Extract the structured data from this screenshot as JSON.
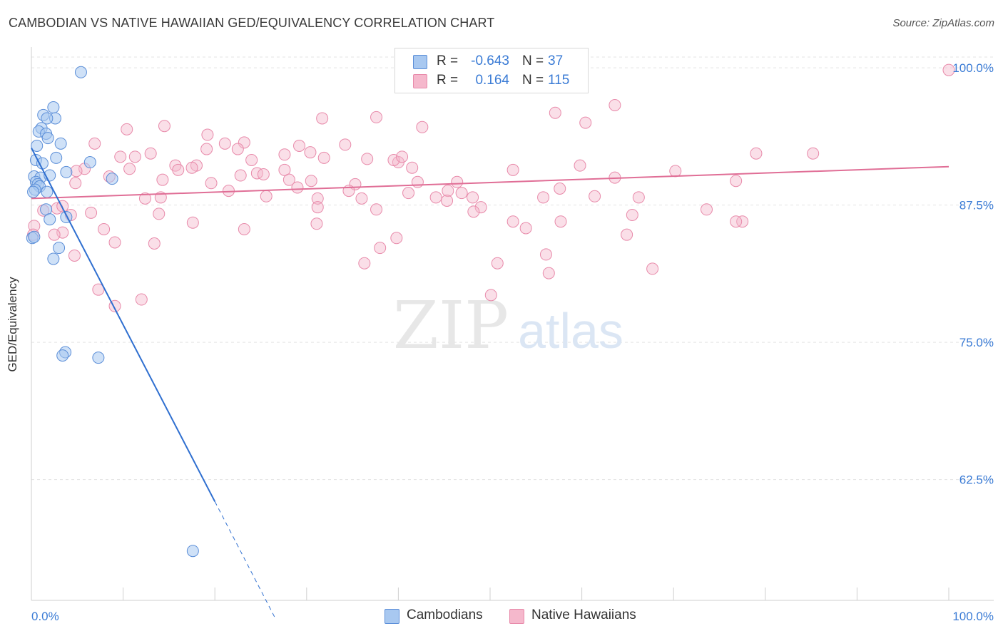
{
  "title": "CAMBODIAN VS NATIVE HAWAIIAN GED/EQUIVALENCY CORRELATION CHART",
  "source": "Source: ZipAtlas.com",
  "watermark": {
    "zip": "ZIP",
    "atlas": "atlas"
  },
  "legend": {
    "rows": [
      {
        "r_label": "R =",
        "r_value": "-0.643",
        "n_label": "N =",
        "n_value": "37",
        "color": "#a8c8f0"
      },
      {
        "r_label": "R =",
        "r_value": "0.164",
        "n_label": "N =",
        "n_value": "115",
        "color": "#f5b8cc"
      }
    ]
  },
  "bottom_legend": [
    {
      "label": "Cambodians",
      "color": "#a8c8f0"
    },
    {
      "label": "Native Hawaiians",
      "color": "#f5b8cc"
    }
  ],
  "chart_data": {
    "type": "scatter",
    "title": "CAMBODIAN VS NATIVE HAWAIIAN GED/EQUIVALENCY CORRELATION CHART",
    "xlabel": "",
    "ylabel": "GED/Equivalency",
    "xlim": [
      0,
      100
    ],
    "ylim": [
      51.5,
      101.5
    ],
    "x_tick_labels": [
      "0.0%",
      "100.0%"
    ],
    "y_ticks": [
      62.5,
      75.0,
      87.5,
      100.0
    ],
    "y_tick_labels": [
      "62.5%",
      "75.0%",
      "87.5%",
      "100.0%"
    ],
    "grid": true,
    "legend_position": "top-center",
    "series": [
      {
        "name": "Cambodians",
        "color": "#5b8ed8",
        "fill": "#a8c8f0",
        "trend": {
          "x0": 0,
          "y0": 92.7,
          "x1": 20,
          "y1": 60.5,
          "dash_to_x": 26.5,
          "dash_to_y": 50.0,
          "color": "#2f6fd0"
        },
        "points": [
          [
            5.4,
            99.6
          ],
          [
            2.4,
            96.4
          ],
          [
            1.3,
            95.7
          ],
          [
            2.6,
            95.4
          ],
          [
            1.7,
            95.4
          ],
          [
            1.1,
            94.5
          ],
          [
            0.8,
            94.2
          ],
          [
            1.6,
            94.0
          ],
          [
            1.8,
            93.6
          ],
          [
            3.2,
            93.1
          ],
          [
            0.6,
            92.9
          ],
          [
            2.7,
            91.8
          ],
          [
            0.5,
            91.6
          ],
          [
            1.2,
            91.3
          ],
          [
            6.4,
            91.4
          ],
          [
            3.8,
            90.5
          ],
          [
            0.3,
            90.1
          ],
          [
            1.0,
            90.0
          ],
          [
            2.0,
            90.2
          ],
          [
            8.8,
            89.9
          ],
          [
            0.5,
            89.6
          ],
          [
            0.7,
            89.4
          ],
          [
            0.9,
            89.2
          ],
          [
            0.4,
            88.9
          ],
          [
            0.2,
            88.7
          ],
          [
            1.7,
            88.7
          ],
          [
            1.6,
            87.1
          ],
          [
            3.8,
            86.4
          ],
          [
            2.0,
            86.2
          ],
          [
            0.1,
            84.5
          ],
          [
            3.0,
            83.6
          ],
          [
            2.4,
            82.6
          ],
          [
            3.7,
            74.1
          ],
          [
            3.4,
            73.8
          ],
          [
            7.3,
            73.6
          ],
          [
            17.6,
            56.0
          ],
          [
            0.3,
            84.6
          ]
        ]
      },
      {
        "name": "Native Hawaiians",
        "color": "#e88aaa",
        "fill": "#f5b8cc",
        "trend": {
          "x0": 0,
          "y0": 88.1,
          "x1": 100,
          "y1": 91.0,
          "color": "#e06e96"
        },
        "points": [
          [
            100.0,
            99.8
          ],
          [
            59.5,
            99.8
          ],
          [
            63.6,
            96.6
          ],
          [
            57.1,
            95.9
          ],
          [
            31.7,
            95.4
          ],
          [
            37.6,
            95.5
          ],
          [
            60.4,
            95.0
          ],
          [
            14.5,
            94.7
          ],
          [
            42.6,
            94.6
          ],
          [
            10.4,
            94.4
          ],
          [
            19.2,
            93.9
          ],
          [
            6.9,
            93.1
          ],
          [
            21.1,
            93.1
          ],
          [
            23.2,
            93.2
          ],
          [
            29.2,
            92.9
          ],
          [
            34.2,
            93.0
          ],
          [
            19.1,
            92.6
          ],
          [
            22.5,
            92.6
          ],
          [
            30.4,
            92.3
          ],
          [
            27.6,
            92.1
          ],
          [
            13.0,
            92.2
          ],
          [
            9.7,
            91.9
          ],
          [
            11.3,
            91.9
          ],
          [
            85.2,
            92.2
          ],
          [
            79.0,
            92.2
          ],
          [
            36.6,
            91.7
          ],
          [
            24.0,
            91.6
          ],
          [
            31.9,
            91.8
          ],
          [
            40.0,
            91.4
          ],
          [
            39.5,
            91.6
          ],
          [
            15.7,
            91.1
          ],
          [
            18.0,
            91.1
          ],
          [
            16.0,
            90.7
          ],
          [
            17.5,
            90.9
          ],
          [
            59.8,
            91.1
          ],
          [
            5.8,
            90.8
          ],
          [
            10.7,
            90.8
          ],
          [
            27.6,
            90.7
          ],
          [
            4.9,
            90.6
          ],
          [
            41.5,
            90.9
          ],
          [
            70.2,
            90.6
          ],
          [
            24.6,
            90.4
          ],
          [
            25.3,
            90.3
          ],
          [
            8.5,
            90.1
          ],
          [
            63.6,
            90.0
          ],
          [
            22.8,
            90.2
          ],
          [
            14.3,
            89.8
          ],
          [
            28.1,
            89.8
          ],
          [
            30.5,
            89.7
          ],
          [
            35.3,
            89.4
          ],
          [
            46.4,
            89.6
          ],
          [
            42.1,
            89.6
          ],
          [
            4.8,
            89.5
          ],
          [
            76.8,
            89.7
          ],
          [
            19.6,
            89.5
          ],
          [
            21.5,
            88.8
          ],
          [
            29.0,
            89.1
          ],
          [
            34.6,
            88.8
          ],
          [
            45.4,
            88.8
          ],
          [
            46.9,
            88.6
          ],
          [
            57.6,
            89.0
          ],
          [
            41.1,
            88.6
          ],
          [
            44.1,
            88.2
          ],
          [
            48.1,
            88.2
          ],
          [
            55.8,
            88.2
          ],
          [
            61.4,
            88.3
          ],
          [
            66.2,
            88.2
          ],
          [
            12.4,
            88.1
          ],
          [
            14.1,
            88.2
          ],
          [
            25.6,
            88.3
          ],
          [
            36.0,
            88.1
          ],
          [
            31.2,
            88.1
          ],
          [
            45.3,
            87.9
          ],
          [
            31.2,
            87.3
          ],
          [
            2.8,
            87.2
          ],
          [
            3.4,
            87.4
          ],
          [
            1.3,
            87.0
          ],
          [
            13.9,
            86.7
          ],
          [
            37.6,
            87.1
          ],
          [
            49.0,
            87.3
          ],
          [
            48.2,
            86.9
          ],
          [
            73.6,
            87.1
          ],
          [
            65.5,
            86.6
          ],
          [
            4.3,
            86.6
          ],
          [
            6.5,
            86.8
          ],
          [
            17.6,
            85.9
          ],
          [
            31.1,
            85.8
          ],
          [
            52.5,
            86.0
          ],
          [
            57.7,
            86.0
          ],
          [
            77.5,
            86.0
          ],
          [
            76.8,
            86.0
          ],
          [
            7.9,
            85.3
          ],
          [
            23.2,
            85.3
          ],
          [
            53.9,
            85.4
          ],
          [
            3.4,
            85.0
          ],
          [
            2.5,
            84.8
          ],
          [
            64.9,
            84.8
          ],
          [
            39.8,
            84.5
          ],
          [
            9.1,
            84.1
          ],
          [
            13.4,
            84.0
          ],
          [
            38.0,
            83.6
          ],
          [
            36.3,
            82.2
          ],
          [
            50.8,
            82.2
          ],
          [
            56.1,
            83.0
          ],
          [
            4.7,
            82.9
          ],
          [
            67.7,
            81.7
          ],
          [
            56.4,
            81.3
          ],
          [
            7.3,
            79.8
          ],
          [
            12.0,
            78.9
          ],
          [
            9.1,
            78.3
          ],
          [
            50.1,
            79.3
          ],
          [
            0.3,
            85.6
          ],
          [
            0.2,
            84.8
          ],
          [
            40.4,
            91.9
          ],
          [
            52.5,
            90.7
          ]
        ]
      }
    ]
  }
}
